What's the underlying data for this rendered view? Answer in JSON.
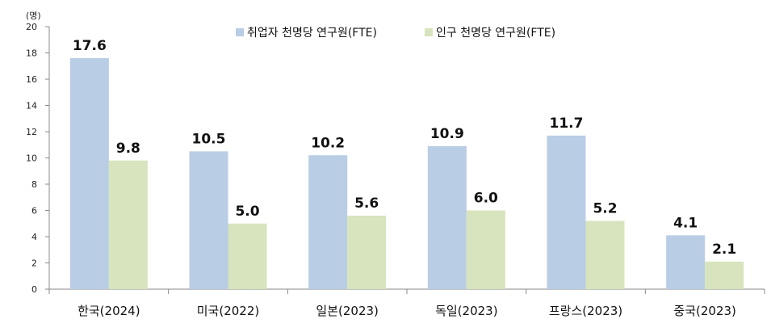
{
  "chart_data": {
    "type": "bar",
    "unit_label": "(명)",
    "categories": [
      "한국(2024)",
      "미국(2022)",
      "일본(2023)",
      "독일(2023)",
      "프랑스(2023)",
      "중국(2023)"
    ],
    "series": [
      {
        "name": "취업자 천명당 연구원(FTE)",
        "values": [
          17.6,
          10.5,
          10.2,
          10.9,
          11.7,
          4.1
        ],
        "color": "#b9cde5"
      },
      {
        "name": "인구 천명당 연구원(FTE)",
        "values": [
          9.8,
          5.0,
          5.6,
          6.0,
          5.2,
          2.1
        ],
        "color": "#d7e4bd"
      }
    ],
    "value_labels": [
      [
        "17.6",
        "10.5",
        "10.2",
        "10.9",
        "11.7",
        "4.1"
      ],
      [
        "9.8",
        "5.0",
        "5.6",
        "6.0",
        "5.2",
        "2.1"
      ]
    ],
    "ylim": [
      0,
      20
    ],
    "yticks": [
      0,
      2,
      4,
      6,
      8,
      10,
      12,
      14,
      16,
      18,
      20
    ],
    "ytick_labels": [
      "0",
      "2",
      "4",
      "6",
      "8",
      "10",
      "12",
      "14",
      "16",
      "18",
      "20"
    ],
    "grid": false,
    "legend_position": "top-right"
  }
}
